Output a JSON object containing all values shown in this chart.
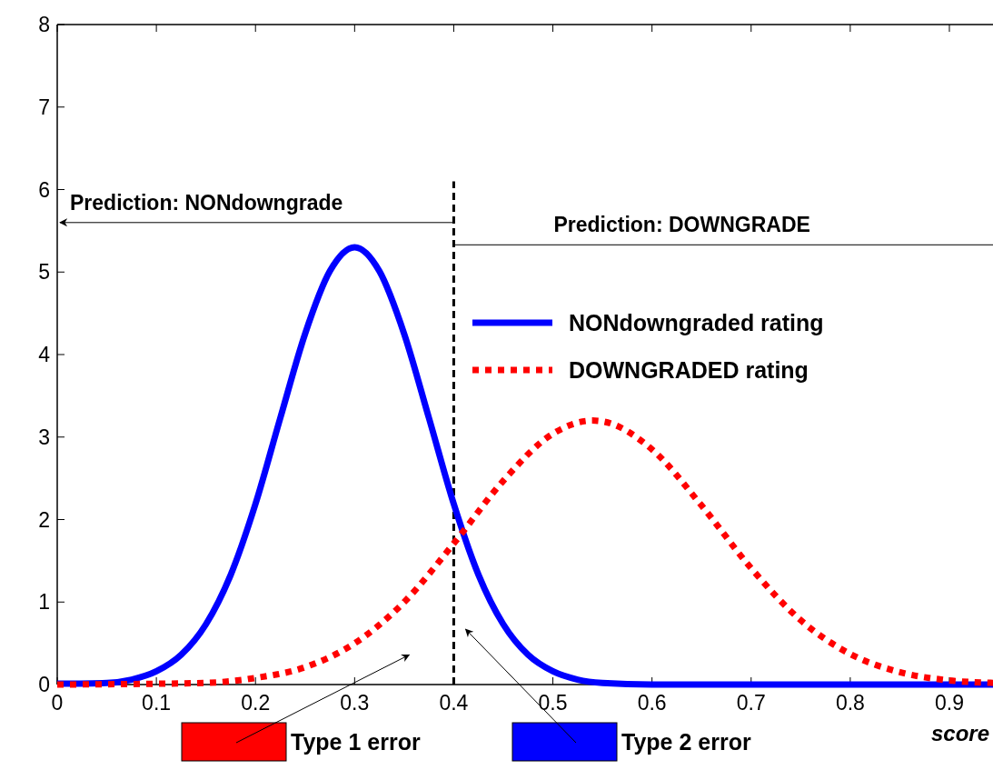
{
  "chart_data": {
    "type": "line",
    "xlabel": "score",
    "xlim": [
      0,
      0.944
    ],
    "ylim": [
      0,
      8
    ],
    "xticks": [
      0,
      0.1,
      0.2,
      0.3,
      0.4,
      0.5,
      0.6,
      0.7,
      0.8,
      0.9
    ],
    "yticks": [
      0,
      1,
      2,
      3,
      4,
      5,
      6,
      7,
      8
    ],
    "grid": false,
    "legend": "right",
    "marker": "none",
    "series": [
      {
        "name": "NONdowngraded rating",
        "color": "#0000ff",
        "line_style": "solid",
        "x": [
          0,
          0.05,
          0.075,
          0.1,
          0.125,
          0.15,
          0.175,
          0.2,
          0.225,
          0.25,
          0.275,
          0.3,
          0.325,
          0.35,
          0.375,
          0.4,
          0.425,
          0.45,
          0.475,
          0.5,
          0.525,
          0.55,
          0.6,
          0.7,
          0.8,
          0.9,
          0.944
        ],
        "values": [
          0.01,
          0.02,
          0.06,
          0.16,
          0.36,
          0.73,
          1.33,
          2.19,
          3.23,
          4.25,
          5.01,
          5.3,
          5.01,
          4.25,
          3.23,
          2.19,
          1.33,
          0.73,
          0.36,
          0.16,
          0.06,
          0.02,
          0,
          0,
          0,
          0,
          0
        ]
      },
      {
        "name": "DOWNGRADED rating",
        "color": "#ff0000",
        "line_style": "dotted",
        "x": [
          0,
          0.1,
          0.15,
          0.2,
          0.25,
          0.3,
          0.35,
          0.4,
          0.45,
          0.5,
          0.54,
          0.55,
          0.6,
          0.65,
          0.7,
          0.75,
          0.8,
          0.85,
          0.9,
          0.944
        ],
        "values": [
          0,
          0.01,
          0.02,
          0.08,
          0.21,
          0.5,
          1.0,
          1.71,
          2.47,
          3.04,
          3.2,
          3.19,
          2.85,
          2.17,
          1.41,
          0.78,
          0.37,
          0.15,
          0.05,
          0.02
        ]
      }
    ],
    "ref_lines": [
      {
        "axis": "x",
        "value": 0.4,
        "line_style": "dashed",
        "color": "#000000"
      },
      {
        "axis": "y",
        "value": 5.6,
        "label": "Prediction: NONdowngrade",
        "color": "#000000"
      },
      {
        "axis": "y",
        "value": 5.33,
        "label": "Prediction: DOWNGRADE",
        "color": "#000000"
      }
    ],
    "annotations": [
      "Type 1 error",
      "Type 2 error"
    ]
  }
}
